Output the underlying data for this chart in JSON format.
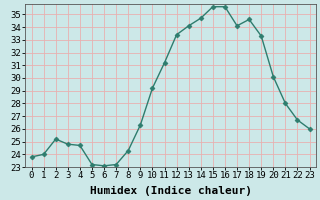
{
  "x": [
    0,
    1,
    2,
    3,
    4,
    5,
    6,
    7,
    8,
    9,
    10,
    11,
    12,
    13,
    14,
    15,
    16,
    17,
    18,
    19,
    20,
    21,
    22,
    23
  ],
  "y": [
    23.8,
    24.0,
    25.2,
    24.8,
    24.7,
    23.2,
    23.1,
    23.2,
    24.3,
    26.3,
    29.2,
    31.2,
    33.4,
    34.1,
    34.7,
    35.6,
    35.6,
    34.1,
    34.6,
    33.3,
    30.1,
    28.0,
    26.7,
    26.0
  ],
  "xlabel": "Humidex (Indice chaleur)",
  "ylim_min": 23,
  "ylim_max": 35.8,
  "xlim_min": -0.5,
  "xlim_max": 23.5,
  "yticks": [
    23,
    24,
    25,
    26,
    27,
    28,
    29,
    30,
    31,
    32,
    33,
    34,
    35
  ],
  "xtick_labels": [
    "0",
    "1",
    "2",
    "3",
    "4",
    "5",
    "6",
    "7",
    "8",
    "9",
    "10",
    "11",
    "12",
    "13",
    "14",
    "15",
    "16",
    "17",
    "18",
    "19",
    "20",
    "21",
    "22",
    "23"
  ],
  "line_color": "#2e7d6e",
  "marker": "D",
  "marker_size": 2.5,
  "bg_color": "#cce8e8",
  "grid_color": "#e8b0b0",
  "xlabel_fontsize": 8,
  "tick_fontsize": 6.5,
  "linewidth": 1.0
}
